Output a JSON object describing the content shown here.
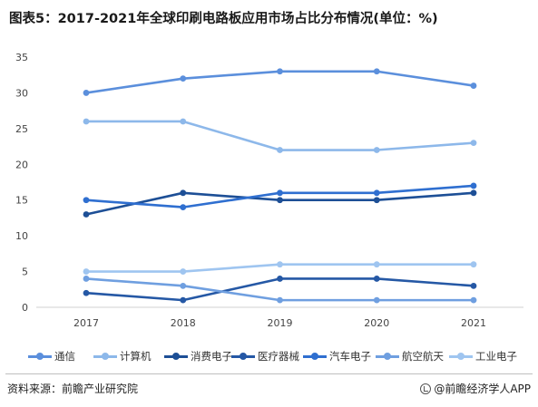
{
  "title": "图表5：2017-2021年全球印刷电路板应用市场占比分布情况(单位：%)",
  "source": "资料来源：前瞻产业研究院",
  "brand": "@前瞻经济学人APP",
  "chart_data": {
    "type": "line",
    "categories": [
      "2017",
      "2018",
      "2019",
      "2020",
      "2021"
    ],
    "ylim": [
      0,
      35
    ],
    "yticks": [
      0,
      5,
      10,
      15,
      20,
      25,
      30,
      35
    ],
    "grid": false,
    "legend_position": "bottom",
    "series": [
      {
        "name": "通信",
        "color": "#5b8fdc",
        "values": [
          30,
          32,
          33,
          33,
          31
        ]
      },
      {
        "name": "计算机",
        "color": "#8db8ea",
        "values": [
          26,
          26,
          22,
          22,
          23
        ]
      },
      {
        "name": "消费电子",
        "color": "#1d4f96",
        "values": [
          13,
          16,
          15,
          15,
          16
        ]
      },
      {
        "name": "医疗器械",
        "color": "#2558a5",
        "values": [
          2,
          1,
          4,
          4,
          3
        ]
      },
      {
        "name": "汽车电子",
        "color": "#2f6fd0",
        "values": [
          15,
          14,
          16,
          16,
          17
        ]
      },
      {
        "name": "航空航天",
        "color": "#6f9fe0",
        "values": [
          4,
          3,
          1,
          1,
          1
        ]
      },
      {
        "name": "工业电子",
        "color": "#9fc5f0",
        "values": [
          5,
          5,
          6,
          6,
          6
        ]
      }
    ]
  }
}
